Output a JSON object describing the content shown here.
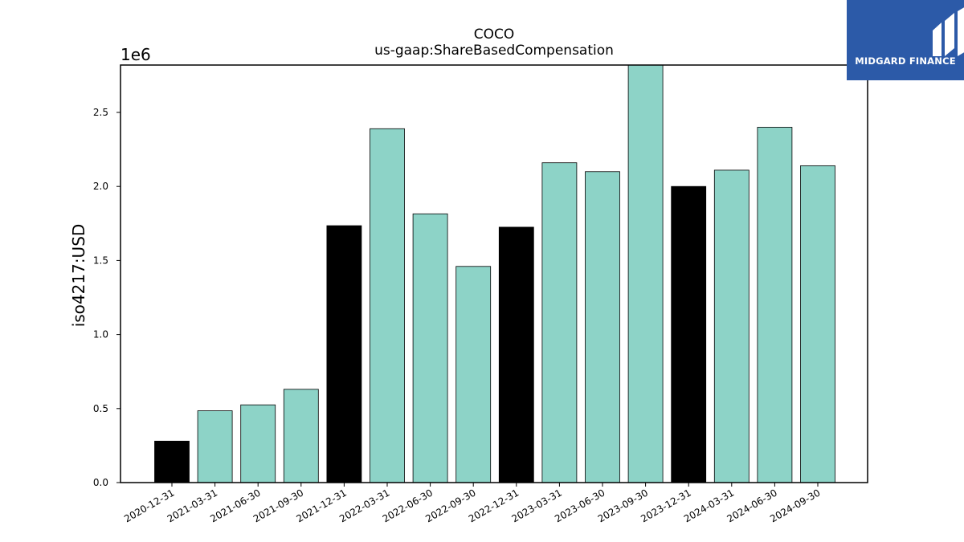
{
  "chart_data": {
    "type": "bar",
    "title": "COCO",
    "subtitle": "us-gaap:ShareBasedCompensation",
    "xlabel": "",
    "ylabel": "iso4217:USD",
    "y_multiplier_label": "1e6",
    "ylim": [
      0,
      2.82
    ],
    "yticks": [
      "0.0",
      "0.5",
      "1.0",
      "1.5",
      "2.0",
      "2.5"
    ],
    "categories": [
      "2020-12-31",
      "2021-03-31",
      "2021-06-30",
      "2021-09-30",
      "2021-12-31",
      "2022-03-31",
      "2022-06-30",
      "2022-09-30",
      "2022-12-31",
      "2023-03-31",
      "2023-06-30",
      "2023-09-30",
      "2023-12-31",
      "2024-03-31",
      "2024-06-30",
      "2024-09-30"
    ],
    "values": [
      0.28,
      0.485,
      0.525,
      0.63,
      1.735,
      2.39,
      1.815,
      1.46,
      1.725,
      2.16,
      2.1,
      2.82,
      2.0,
      2.11,
      2.4,
      2.14
    ],
    "bar_colors": [
      "#000000",
      "#8dd3c7",
      "#8dd3c7",
      "#8dd3c7",
      "#000000",
      "#8dd3c7",
      "#8dd3c7",
      "#8dd3c7",
      "#000000",
      "#8dd3c7",
      "#8dd3c7",
      "#8dd3c7",
      "#000000",
      "#8dd3c7",
      "#8dd3c7",
      "#8dd3c7"
    ],
    "grid": false,
    "legend": "none"
  },
  "logo": {
    "text": "MIDGARD FINANCE",
    "background": "#2c5aa8"
  }
}
